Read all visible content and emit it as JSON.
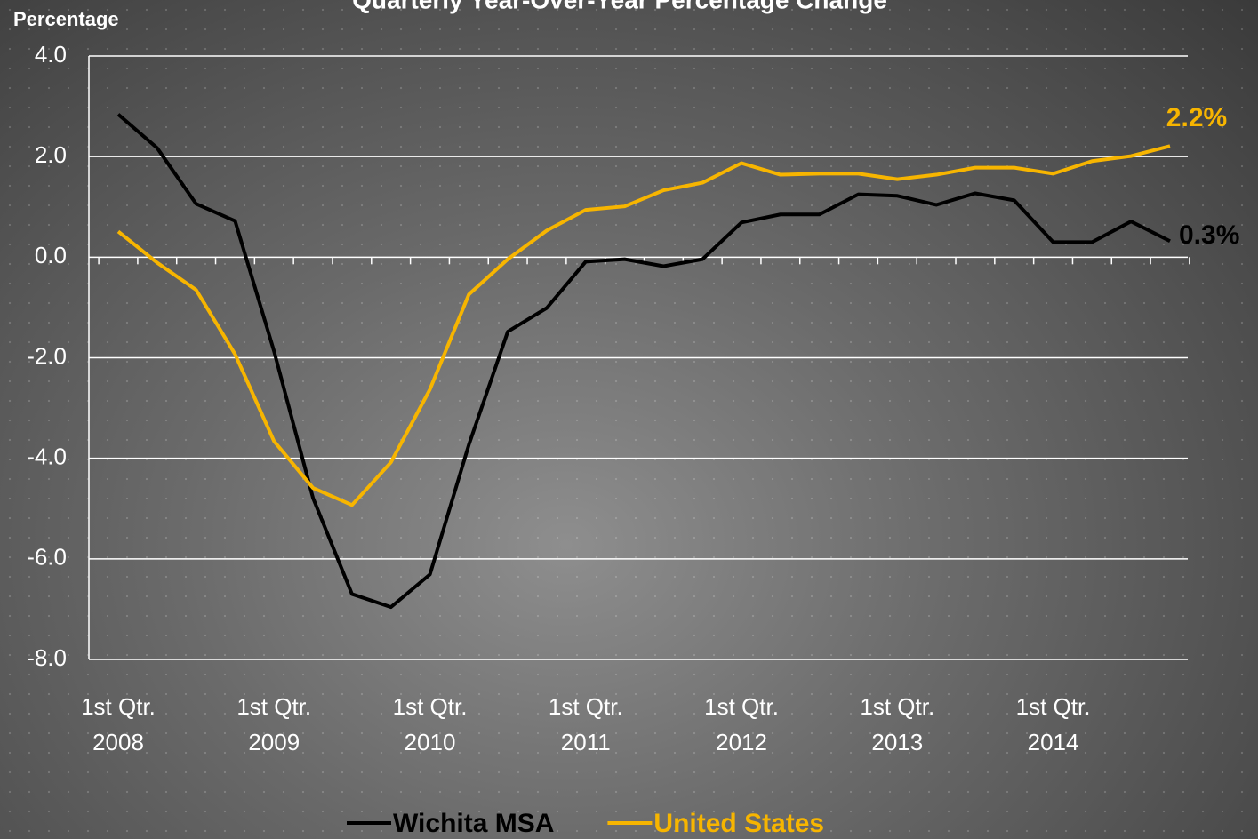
{
  "chart_data": {
    "type": "line",
    "title": "Quarterly Year-Over-Year Percentage Change",
    "y_label": "Percentage",
    "categories": [
      "1st Qtr. 2008",
      null,
      null,
      null,
      "1st Qtr. 2009",
      null,
      null,
      null,
      "1st Qtr. 2010",
      null,
      null,
      null,
      "1st Qtr. 2011",
      null,
      null,
      null,
      "1st Qtr. 2012",
      null,
      null,
      null,
      "1st Qtr. 2013",
      null,
      null,
      null,
      "1st Qtr. 2014",
      null,
      null,
      null
    ],
    "series": [
      {
        "name": "Wichita MSA",
        "color": "#000000",
        "values": [
          2.84,
          2.17,
          1.06,
          0.72,
          -1.87,
          -4.79,
          -6.7,
          -6.96,
          -6.31,
          -3.73,
          -1.48,
          -1.01,
          -0.09,
          -0.04,
          -0.18,
          -0.04,
          0.69,
          0.85,
          0.85,
          1.25,
          1.22,
          1.04,
          1.27,
          1.13,
          0.3,
          0.3,
          0.71,
          0.32
        ],
        "value_labels": [
          null,
          null,
          null,
          null,
          null,
          null,
          null,
          null,
          null,
          null,
          null,
          null,
          null,
          null,
          null,
          null,
          null,
          null,
          null,
          null,
          null,
          null,
          null,
          null,
          null,
          null,
          null,
          "0.3%"
        ]
      },
      {
        "name": "United States",
        "color": "#f7b500",
        "values": [
          0.51,
          -0.11,
          -0.65,
          -1.93,
          -3.66,
          -4.59,
          -4.93,
          -4.08,
          -2.63,
          -0.74,
          -0.04,
          0.53,
          0.94,
          1.01,
          1.33,
          1.48,
          1.87,
          1.64,
          1.66,
          1.66,
          1.55,
          1.64,
          1.78,
          1.78,
          1.66,
          1.91,
          2.01,
          2.21
        ],
        "value_labels": [
          null,
          null,
          null,
          null,
          null,
          null,
          null,
          null,
          null,
          null,
          null,
          null,
          null,
          null,
          null,
          null,
          null,
          null,
          null,
          null,
          null,
          null,
          null,
          null,
          null,
          null,
          null,
          "2.2%"
        ]
      }
    ],
    "ylim": [
      -8,
      4
    ],
    "yticks": [
      {
        "value": -8,
        "label": "-8.0"
      },
      {
        "value": -6,
        "label": "-6.0"
      },
      {
        "value": -4,
        "label": "-4.0"
      },
      {
        "value": -2,
        "label": "-2.0"
      },
      {
        "value": 0,
        "label": "0.0"
      },
      {
        "value": 2,
        "label": "2.0"
      },
      {
        "value": 4,
        "label": "4.0"
      }
    ],
    "grid": true,
    "legend": "bottom"
  }
}
